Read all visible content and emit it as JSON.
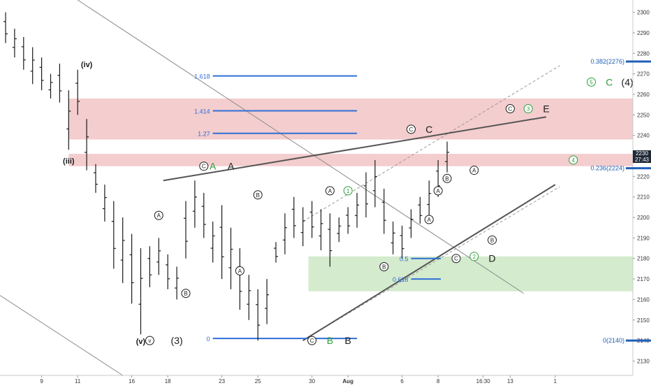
{
  "chart_data": {
    "type": "ohlc",
    "title": "",
    "xlabel": "",
    "ylabel": "",
    "ylim": [
      2123,
      2306
    ],
    "y_ticks": [
      2130,
      2140,
      2150,
      2160,
      2170,
      2180,
      2190,
      2200,
      2210,
      2220,
      2230,
      2240,
      2250,
      2260,
      2270,
      2280,
      2290,
      2300
    ],
    "x_ticks": [
      {
        "label": "9",
        "i": 4
      },
      {
        "label": "11",
        "i": 8
      },
      {
        "label": "16",
        "i": 14
      },
      {
        "label": "18",
        "i": 18
      },
      {
        "label": "23",
        "i": 24
      },
      {
        "label": "25",
        "i": 28
      },
      {
        "label": "30",
        "i": 34
      },
      {
        "label": "Aug",
        "i": 38
      },
      {
        "label": "6",
        "i": 44
      },
      {
        "label": "8",
        "i": 48
      },
      {
        "label": "16:30",
        "i": 53
      },
      {
        "label": "13",
        "i": 56
      },
      {
        "label": "1",
        "i": 61
      }
    ],
    "price_axis": {
      "last_close": "2230",
      "countdown": "27:43",
      "last_close_value": 2230
    },
    "series": [
      {
        "high": 2300,
        "low": 2285
      },
      {
        "high": 2292,
        "low": 2278
      },
      {
        "high": 2288,
        "low": 2272
      },
      {
        "high": 2283,
        "low": 2265
      },
      {
        "high": 2278,
        "low": 2262
      },
      {
        "high": 2270,
        "low": 2258
      },
      {
        "high": 2275,
        "low": 2256
      },
      {
        "high": 2262,
        "low": 2233
      },
      {
        "high": 2272,
        "low": 2250
      },
      {
        "high": 2248,
        "low": 2223
      },
      {
        "high": 2226,
        "low": 2212
      },
      {
        "high": 2216,
        "low": 2198
      },
      {
        "high": 2208,
        "low": 2175
      },
      {
        "high": 2200,
        "low": 2168
      },
      {
        "high": 2192,
        "low": 2158
      },
      {
        "high": 2185,
        "low": 2143
      },
      {
        "high": 2186,
        "low": 2166
      },
      {
        "high": 2190,
        "low": 2172
      },
      {
        "high": 2182,
        "low": 2165
      },
      {
        "high": 2176,
        "low": 2160
      },
      {
        "high": 2208,
        "low": 2180
      },
      {
        "high": 2218,
        "low": 2195
      },
      {
        "high": 2212,
        "low": 2190
      },
      {
        "high": 2198,
        "low": 2178
      },
      {
        "high": 2206,
        "low": 2170
      },
      {
        "high": 2195,
        "low": 2165
      },
      {
        "high": 2185,
        "low": 2155
      },
      {
        "high": 2172,
        "low": 2150
      },
      {
        "high": 2165,
        "low": 2140
      },
      {
        "high": 2170,
        "low": 2148
      },
      {
        "high": 2188,
        "low": 2178
      },
      {
        "high": 2202,
        "low": 2182
      },
      {
        "high": 2210,
        "low": 2190
      },
      {
        "high": 2205,
        "low": 2186
      },
      {
        "high": 2208,
        "low": 2190
      },
      {
        "high": 2204,
        "low": 2184
      },
      {
        "high": 2202,
        "low": 2176
      },
      {
        "high": 2200,
        "low": 2188
      },
      {
        "high": 2205,
        "low": 2192
      },
      {
        "high": 2212,
        "low": 2195
      },
      {
        "high": 2222,
        "low": 2200
      },
      {
        "high": 2228,
        "low": 2205
      },
      {
        "high": 2214,
        "low": 2192
      },
      {
        "high": 2198,
        "low": 2182
      },
      {
        "high": 2196,
        "low": 2180
      },
      {
        "high": 2204,
        "low": 2190
      },
      {
        "high": 2210,
        "low": 2197
      },
      {
        "high": 2218,
        "low": 2200
      },
      {
        "high": 2228,
        "low": 2210
      },
      {
        "high": 2237,
        "low": 2222
      }
    ],
    "fib_levels": [
      {
        "label": "1.618",
        "value": 2269
      },
      {
        "label": "1.414",
        "value": 2252
      },
      {
        "label": "1.27",
        "value": 2241
      },
      {
        "label": "0.5",
        "value": 2180
      },
      {
        "label": "0.618",
        "value": 2170
      },
      {
        "label": "0",
        "value": 2141
      }
    ],
    "axis_markers": [
      {
        "label": "0.382(2276)",
        "value": 2276
      },
      {
        "label": "0.236(2224)",
        "value": 2224
      },
      {
        "label": "0(2140)",
        "value": 2140
      }
    ],
    "zones": [
      {
        "name": "upper-resistance-zone",
        "from": 2238,
        "to": 2258,
        "color": "#f2c4c6"
      },
      {
        "name": "lower-resistance-zone",
        "from": 2225,
        "to": 2231,
        "color": "#f2c4c6"
      },
      {
        "name": "support-zone",
        "from": 2164,
        "to": 2181,
        "color": "#cde8c5"
      }
    ],
    "wave_labels": [
      {
        "text": "(iv)",
        "i": 9,
        "y": 2275
      },
      {
        "text": "(iii)",
        "i": 7,
        "y": 2228
      },
      {
        "text": "(v)",
        "i": 15,
        "y": 2140
      },
      {
        "text": "v",
        "i": 16,
        "y": 2140,
        "circled": true
      },
      {
        "text": "(3)",
        "i": 19,
        "y": 2140
      },
      {
        "text": "A",
        "i": 17,
        "y": 2201,
        "circled": true
      },
      {
        "text": "B",
        "i": 20,
        "y": 2163,
        "circled": true
      },
      {
        "text": "B",
        "i": 28,
        "y": 2211,
        "circled": true
      },
      {
        "text": "A",
        "i": 26,
        "y": 2174,
        "circled": true
      },
      {
        "text": "C",
        "i": 22,
        "y": 2225,
        "circled": true
      },
      {
        "text": "A",
        "i": 23,
        "y": 2225,
        "color": "#2e9e3a"
      },
      {
        "text": "A",
        "i": 25,
        "y": 2225
      },
      {
        "text": "A",
        "i": 36,
        "y": 2213,
        "circled": true
      },
      {
        "text": "1",
        "i": 38,
        "y": 2213,
        "circled": true,
        "color": "#2e9e3a"
      },
      {
        "text": "B",
        "i": 42,
        "y": 2176,
        "circled": true
      },
      {
        "text": "C",
        "i": 34,
        "y": 2140,
        "circled": true
      },
      {
        "text": "B",
        "i": 36,
        "y": 2140,
        "color": "#2e9e3a"
      },
      {
        "text": "B",
        "i": 38,
        "y": 2140
      },
      {
        "text": "C",
        "i": 45,
        "y": 2243,
        "circled": true
      },
      {
        "text": "C",
        "i": 47,
        "y": 2243
      },
      {
        "text": "A",
        "i": 52,
        "y": 2223,
        "circled": true
      },
      {
        "text": "B",
        "i": 49,
        "y": 2219,
        "circled": true
      },
      {
        "text": "A",
        "i": 47,
        "y": 2199,
        "circled": true
      },
      {
        "text": "C",
        "i": 50,
        "y": 2180,
        "circled": true
      },
      {
        "text": "2",
        "i": 52,
        "y": 2181,
        "circled": true,
        "color": "#2e9e3a"
      },
      {
        "text": "D",
        "i": 54,
        "y": 2180
      },
      {
        "text": "B",
        "i": 54,
        "y": 2189,
        "circled": true
      },
      {
        "text": "A",
        "i": 48,
        "y": 2213,
        "circled": true
      },
      {
        "text": "C",
        "i": 56,
        "y": 2253,
        "circled": true
      },
      {
        "text": "3",
        "i": 58,
        "y": 2253,
        "circled": true,
        "color": "#2e9e3a"
      },
      {
        "text": "E",
        "i": 60,
        "y": 2253
      },
      {
        "text": "4",
        "i": 63,
        "y": 2228,
        "circled": true,
        "color": "#2e9e3a"
      },
      {
        "text": "5",
        "i": 65,
        "y": 2266,
        "circled": true,
        "color": "#2e9e3a"
      },
      {
        "text": "C",
        "i": 67,
        "y": 2266,
        "color": "#2e9e3a"
      },
      {
        "text": "(4)",
        "i": 69,
        "y": 2266
      }
    ],
    "grid": false,
    "colors": {
      "bar": "#1a1a1a",
      "fib_line": "#2f6fd6",
      "trendline": "#555555",
      "dashed_channel": "#999999",
      "label_green": "#2e9e3a",
      "marker_blue": "#1f5fb8"
    }
  }
}
